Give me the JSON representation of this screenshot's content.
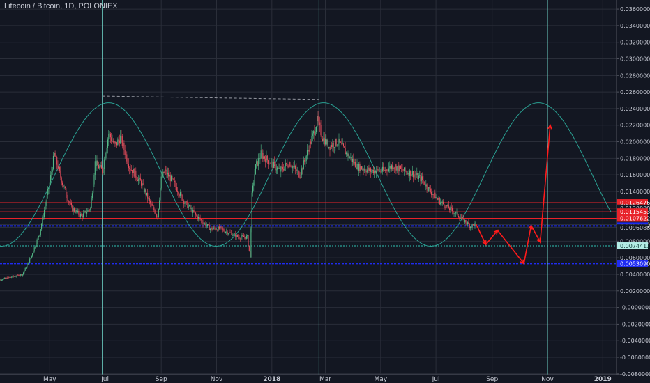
{
  "title": "Litecoin / Bitcoin, 1D, POLONIEX",
  "colors": {
    "background": "#131722",
    "grid": "#2a2e39",
    "candle_up": "#53b987",
    "candle_down": "#eb4d5c",
    "cycle_curve": "#2aa193",
    "cycle_marker": "#6fd3c6",
    "projection": "#ff1b1b",
    "support_blue": "#1f2cf2",
    "support_teal": "#2fc4b4",
    "resistance_red": "#e8232a",
    "axis_text": "#c9ccd6"
  },
  "chart_data": {
    "type": "candlestick",
    "title": "Litecoin / Bitcoin, 1D, POLONIEX",
    "x_axis": {
      "type": "date",
      "tick_labels": [
        "May",
        "Jul",
        "Sep",
        "Nov",
        "2018",
        "Mar",
        "May",
        "Jul",
        "Sep",
        "Nov",
        "2019"
      ],
      "tick_dates": [
        "2017-05-01",
        "2017-07-01",
        "2017-09-01",
        "2017-11-01",
        "2018-01-01",
        "2018-03-01",
        "2018-05-01",
        "2018-07-01",
        "2018-09-01",
        "2018-11-01",
        "2019-01-01"
      ]
    },
    "y_axis": {
      "ticks": [
        "0.03600000",
        "0.03400000",
        "0.03200000",
        "0.03000000",
        "0.02800000",
        "0.02600000",
        "0.02400000",
        "0.02200000",
        "0.02000000",
        "0.01800000",
        "0.01600000",
        "0.01400000",
        "0.01200000",
        "0.01000000",
        "0.00800000",
        "0.00600000",
        "0.00400000",
        "0.00200000",
        "-0.00000000",
        "-0.00200000",
        "-0.00400000",
        "-0.00600000",
        "-0.00800000"
      ],
      "range": [
        -0.0081,
        0.0371
      ],
      "grid": true
    },
    "price_waypoints": [
      [
        "2017-03-01",
        0.0032
      ],
      [
        "2017-04-01",
        0.004
      ],
      [
        "2017-04-10",
        0.006
      ],
      [
        "2017-04-20",
        0.009
      ],
      [
        "2017-05-01",
        0.015
      ],
      [
        "2017-05-06",
        0.0185
      ],
      [
        "2017-05-15",
        0.015
      ],
      [
        "2017-05-25",
        0.012
      ],
      [
        "2017-06-05",
        0.011
      ],
      [
        "2017-06-15",
        0.012
      ],
      [
        "2017-06-20",
        0.0175
      ],
      [
        "2017-06-28",
        0.0165
      ],
      [
        "2017-07-05",
        0.021
      ],
      [
        "2017-07-12",
        0.0195
      ],
      [
        "2017-07-18",
        0.0205
      ],
      [
        "2017-07-28",
        0.017
      ],
      [
        "2017-08-10",
        0.015
      ],
      [
        "2017-08-20",
        0.0125
      ],
      [
        "2017-08-28",
        0.011
      ],
      [
        "2017-09-01",
        0.0155
      ],
      [
        "2017-09-05",
        0.0165
      ],
      [
        "2017-09-15",
        0.015
      ],
      [
        "2017-09-25",
        0.013
      ],
      [
        "2017-10-10",
        0.011
      ],
      [
        "2017-10-25",
        0.0095
      ],
      [
        "2017-11-05",
        0.0095
      ],
      [
        "2017-11-15",
        0.009
      ],
      [
        "2017-11-25",
        0.0085
      ],
      [
        "2017-12-05",
        0.0085
      ],
      [
        "2017-12-08",
        0.006
      ],
      [
        "2017-12-10",
        0.0135
      ],
      [
        "2017-12-14",
        0.017
      ],
      [
        "2017-12-20",
        0.0185
      ],
      [
        "2017-12-30",
        0.0175
      ],
      [
        "2018-01-10",
        0.0165
      ],
      [
        "2018-01-20",
        0.0175
      ],
      [
        "2018-02-01",
        0.016
      ],
      [
        "2018-02-10",
        0.019
      ],
      [
        "2018-02-16",
        0.021
      ],
      [
        "2018-02-20",
        0.0225
      ],
      [
        "2018-02-26",
        0.0205
      ],
      [
        "2018-03-05",
        0.0195
      ],
      [
        "2018-03-15",
        0.02
      ],
      [
        "2018-03-25",
        0.0185
      ],
      [
        "2018-04-05",
        0.017
      ],
      [
        "2018-04-20",
        0.0165
      ],
      [
        "2018-05-05",
        0.0165
      ],
      [
        "2018-05-15",
        0.0172
      ],
      [
        "2018-05-25",
        0.0165
      ],
      [
        "2018-06-05",
        0.0162
      ],
      [
        "2018-06-15",
        0.0155
      ],
      [
        "2018-06-25",
        0.014
      ],
      [
        "2018-07-05",
        0.0128
      ],
      [
        "2018-07-15",
        0.012
      ],
      [
        "2018-07-25",
        0.0112
      ],
      [
        "2018-08-01",
        0.0105
      ],
      [
        "2018-08-08",
        0.0098
      ],
      [
        "2018-08-14",
        0.0101
      ]
    ],
    "horizontal_levels": [
      {
        "value": 0.01264762,
        "label": "0.01264762",
        "style": "red"
      },
      {
        "value": 0.012,
        "label": "0.01200000",
        "style": "red-thin"
      },
      {
        "value": 0.01154538,
        "label": "0.01154538",
        "style": "red"
      },
      {
        "value": 0.0107622,
        "label": "0.01076220",
        "style": "red"
      },
      {
        "value": 0.00984771,
        "label": "0.00984771",
        "style": "blue"
      },
      {
        "value": 0.00960887,
        "label": "0.00960887",
        "style": "plain"
      },
      {
        "value": 0.00744111,
        "label": "0.00744111",
        "style": "teal"
      },
      {
        "value": 0.005309,
        "label": "0.00530900",
        "style": "blue"
      }
    ],
    "cycle_markers": [
      "2017-06-28",
      "2018-02-22",
      "2018-11-01"
    ],
    "dashed_line": {
      "from": [
        "2017-06-28",
        0.0255
      ],
      "to": [
        "2018-02-22",
        0.0251
      ]
    },
    "cycle_curve": {
      "period_days": 237,
      "crest_date": "2017-07-05",
      "high": 0.0247,
      "low": 0.0074,
      "start": "2017-03-01",
      "end": "2019-01-10"
    },
    "projection_path": [
      [
        "2018-08-14",
        0.0101
      ],
      [
        "2018-08-25",
        0.0076
      ],
      [
        "2018-09-07",
        0.0093
      ],
      [
        "2018-10-06",
        0.0053
      ],
      [
        "2018-10-14",
        0.0099
      ],
      [
        "2018-10-24",
        0.0079
      ],
      [
        "2018-11-04",
        0.022
      ]
    ]
  }
}
